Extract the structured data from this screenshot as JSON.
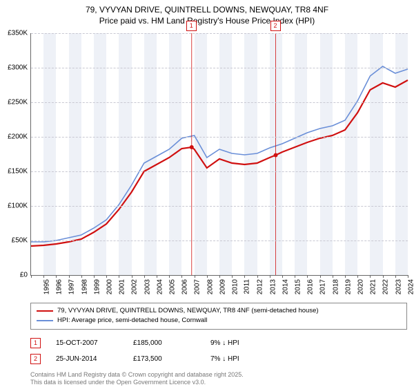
{
  "title_line1": "79, VYVYAN DRIVE, QUINTRELL DOWNS, NEWQUAY, TR8 4NF",
  "title_line2": "Price paid vs. HM Land Registry's House Price Index (HPI)",
  "chart": {
    "type": "line",
    "background_color": "#ffffff",
    "band_color": "#eef1f7",
    "grid_color": "#c8c8d2",
    "x_years": [
      1995,
      1996,
      1997,
      1998,
      1999,
      2000,
      2001,
      2002,
      2003,
      2004,
      2005,
      2006,
      2007,
      2008,
      2009,
      2010,
      2011,
      2012,
      2013,
      2014,
      2015,
      2016,
      2017,
      2018,
      2019,
      2020,
      2021,
      2022,
      2023,
      2024,
      2025
    ],
    "y_ticks": [
      0,
      50000,
      100000,
      150000,
      200000,
      250000,
      300000,
      350000
    ],
    "y_labels": [
      "£0",
      "£50K",
      "£100K",
      "£150K",
      "£200K",
      "£250K",
      "£300K",
      "£350K"
    ],
    "ylim": [
      0,
      350000
    ],
    "x_label_fontsize": 10,
    "y_label_fontsize": 10,
    "series": [
      {
        "name": "subject",
        "label": "79, VYVYAN DRIVE, QUINTRELL DOWNS, NEWQUAY, TR8 4NF (semi-detached house)",
        "color": "#d01010",
        "width": 2.2,
        "data": [
          [
            1995,
            42000
          ],
          [
            1996,
            43000
          ],
          [
            1997,
            45000
          ],
          [
            1998,
            48000
          ],
          [
            1999,
            52000
          ],
          [
            2000,
            62000
          ],
          [
            2001,
            74000
          ],
          [
            2002,
            95000
          ],
          [
            2003,
            120000
          ],
          [
            2004,
            150000
          ],
          [
            2005,
            160000
          ],
          [
            2006,
            170000
          ],
          [
            2007,
            183000
          ],
          [
            2007.79,
            185000
          ],
          [
            2008,
            182000
          ],
          [
            2009,
            155000
          ],
          [
            2010,
            168000
          ],
          [
            2011,
            162000
          ],
          [
            2012,
            160000
          ],
          [
            2013,
            162000
          ],
          [
            2014,
            170000
          ],
          [
            2014.48,
            173500
          ],
          [
            2015,
            178000
          ],
          [
            2016,
            185000
          ],
          [
            2017,
            192000
          ],
          [
            2018,
            198000
          ],
          [
            2019,
            202000
          ],
          [
            2020,
            210000
          ],
          [
            2021,
            235000
          ],
          [
            2022,
            268000
          ],
          [
            2023,
            278000
          ],
          [
            2024,
            272000
          ],
          [
            2025,
            282000
          ]
        ]
      },
      {
        "name": "hpi",
        "label": "HPI: Average price, semi-detached house, Cornwall",
        "color": "#6a8fd8",
        "width": 1.6,
        "data": [
          [
            1995,
            48000
          ],
          [
            1996,
            48000
          ],
          [
            1997,
            50000
          ],
          [
            1998,
            54000
          ],
          [
            1999,
            58000
          ],
          [
            2000,
            68000
          ],
          [
            2001,
            80000
          ],
          [
            2002,
            102000
          ],
          [
            2003,
            130000
          ],
          [
            2004,
            162000
          ],
          [
            2005,
            172000
          ],
          [
            2006,
            182000
          ],
          [
            2007,
            198000
          ],
          [
            2008,
            202000
          ],
          [
            2009,
            170000
          ],
          [
            2010,
            182000
          ],
          [
            2011,
            176000
          ],
          [
            2012,
            174000
          ],
          [
            2013,
            176000
          ],
          [
            2014,
            184000
          ],
          [
            2015,
            190000
          ],
          [
            2016,
            198000
          ],
          [
            2017,
            206000
          ],
          [
            2018,
            212000
          ],
          [
            2019,
            216000
          ],
          [
            2020,
            224000
          ],
          [
            2021,
            252000
          ],
          [
            2022,
            288000
          ],
          [
            2023,
            302000
          ],
          [
            2024,
            292000
          ],
          [
            2025,
            298000
          ]
        ]
      }
    ],
    "markers": [
      {
        "num": "1",
        "year": 2007.79,
        "value": 185000
      },
      {
        "num": "2",
        "year": 2014.48,
        "value": 173500
      }
    ],
    "marker_color": "#d01010"
  },
  "legend": {
    "series1": "79, VYVYAN DRIVE, QUINTRELL DOWNS, NEWQUAY, TR8 4NF (semi-detached house)",
    "series2": "HPI: Average price, semi-detached house, Cornwall"
  },
  "events": [
    {
      "num": "1",
      "date": "15-OCT-2007",
      "price": "£185,000",
      "delta": "9% ↓ HPI"
    },
    {
      "num": "2",
      "date": "25-JUN-2014",
      "price": "£173,500",
      "delta": "7% ↓ HPI"
    }
  ],
  "footer_line1": "Contains HM Land Registry data © Crown copyright and database right 2025.",
  "footer_line2": "This data is licensed under the Open Government Licence v3.0."
}
